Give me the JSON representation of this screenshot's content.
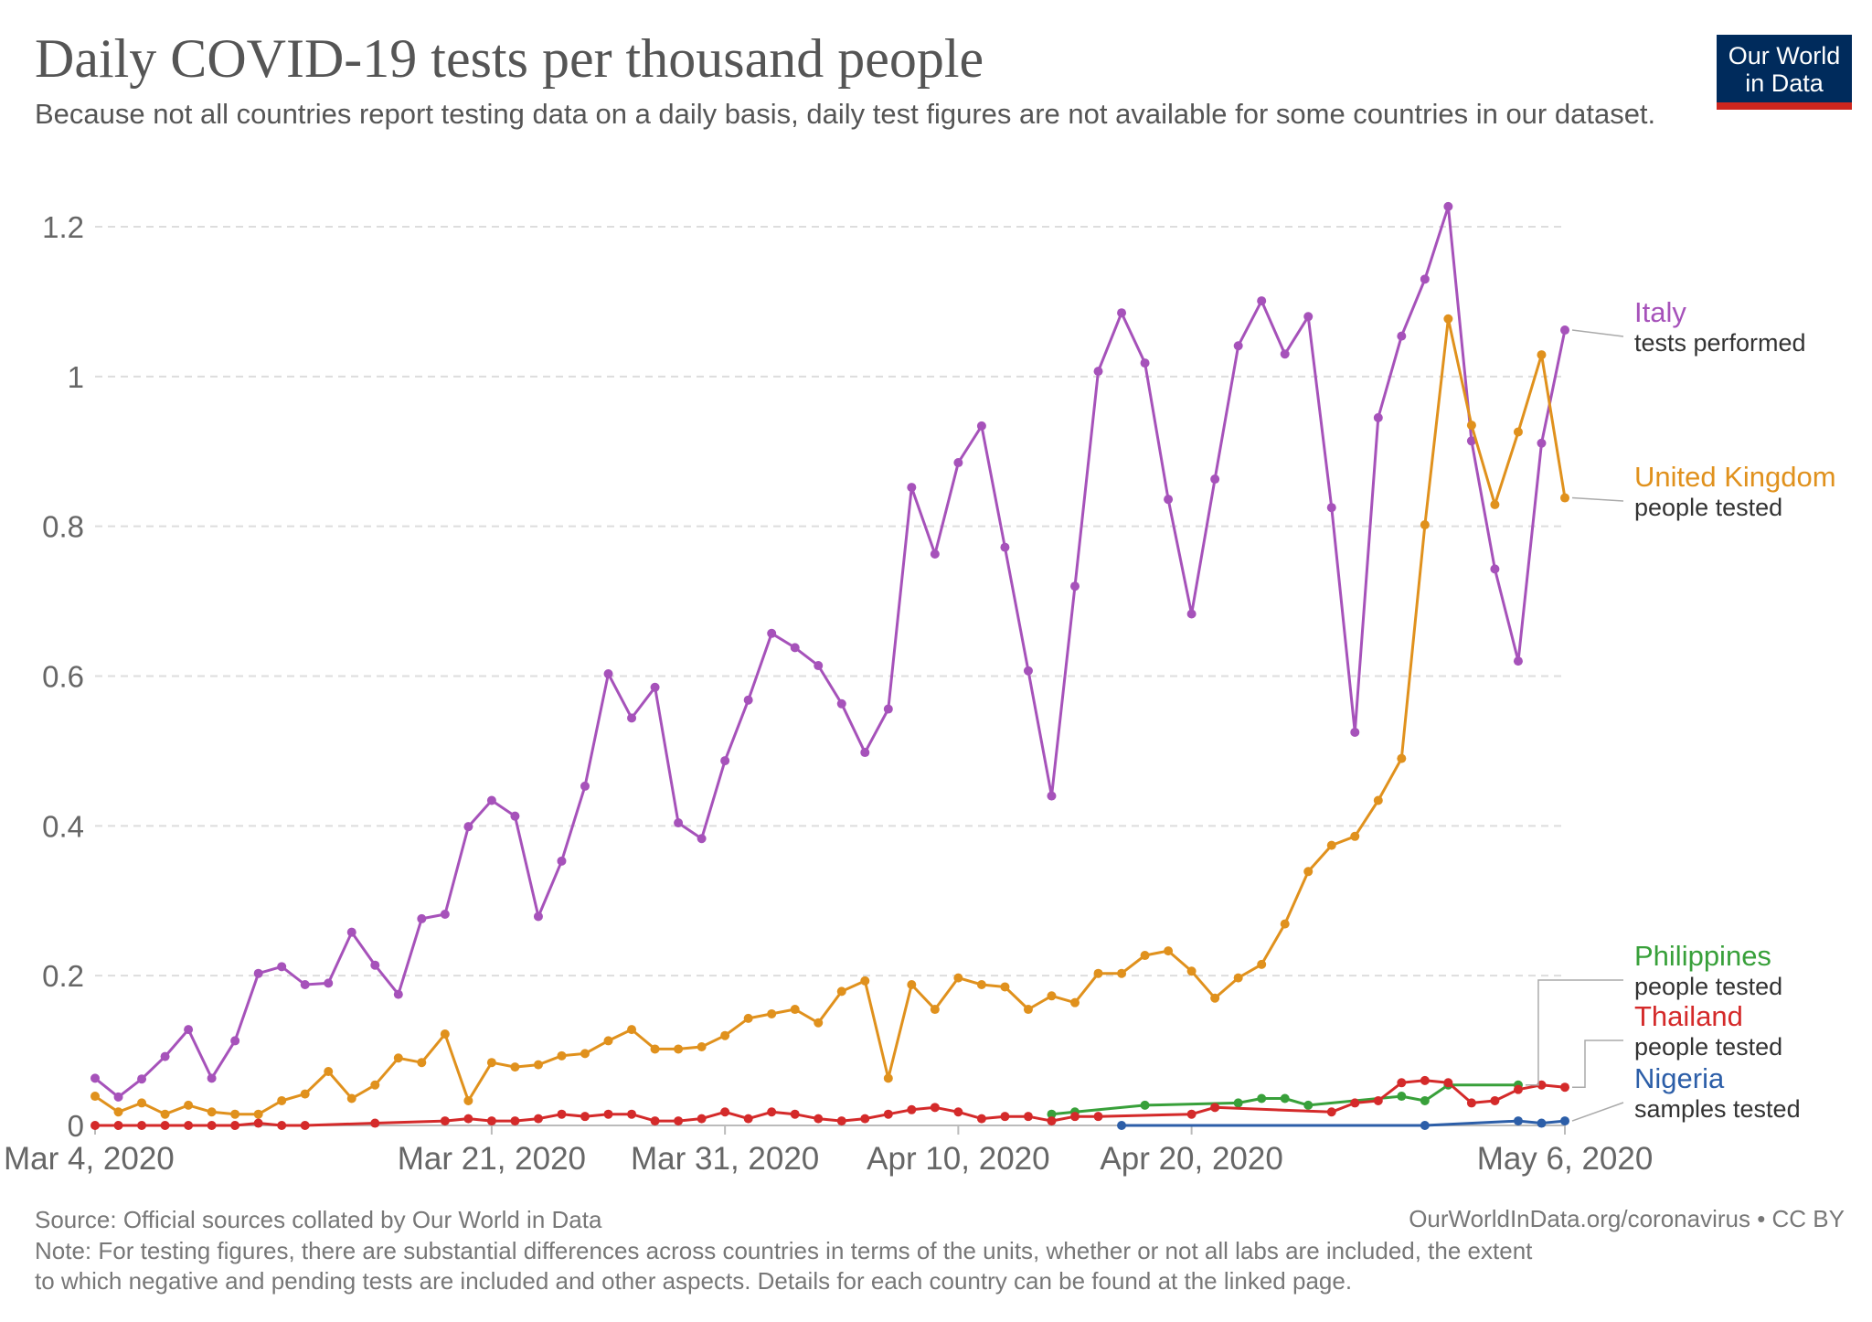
{
  "header": {
    "title": "Daily COVID-19 tests per thousand people",
    "subtitle": "Because not all countries report testing data on a daily basis, daily test figures are not available for some countries in our dataset.",
    "logo_line1": "Our World",
    "logo_line2": "in Data"
  },
  "footer": {
    "source": "Source: Official sources collated by Our World in Data",
    "license": "OurWorldInData.org/coronavirus • CC BY",
    "note_line1": "Note: For testing figures, there are substantial differences across countries in terms of the units, whether or not all labs are included, the extent",
    "note_line2": "to which negative and pending tests are included and other aspects. Details for each country can be found at the linked page."
  },
  "chart_data": {
    "type": "line",
    "x_unit": "date",
    "xlim": [
      "2020-03-04",
      "2020-05-06"
    ],
    "ylim": [
      0,
      1.2
    ],
    "grid": true,
    "y_ticks": [
      {
        "value": 0,
        "label": "0"
      },
      {
        "value": 0.2,
        "label": "0.2"
      },
      {
        "value": 0.4,
        "label": "0.4"
      },
      {
        "value": 0.6,
        "label": "0.6"
      },
      {
        "value": 0.8,
        "label": "0.8"
      },
      {
        "value": 1.0,
        "label": "1"
      },
      {
        "value": 1.2,
        "label": "1.2"
      }
    ],
    "x_ticks": [
      {
        "date": "2020-03-04",
        "label": "Mar 4, 2020"
      },
      {
        "date": "2020-03-21",
        "label": "Mar 21, 2020"
      },
      {
        "date": "2020-03-31",
        "label": "Mar 31, 2020"
      },
      {
        "date": "2020-04-10",
        "label": "Apr 10, 2020"
      },
      {
        "date": "2020-04-20",
        "label": "Apr 20, 2020"
      },
      {
        "date": "2020-05-06",
        "label": "May 6, 2020"
      }
    ],
    "legend_placement": "right",
    "series": [
      {
        "name": "Italy",
        "sublabel": "tests performed",
        "color": "#a652ba",
        "points": [
          [
            "2020-03-04",
            0.063
          ],
          [
            "2020-03-05",
            0.038
          ],
          [
            "2020-03-06",
            0.062
          ],
          [
            "2020-03-07",
            0.092
          ],
          [
            "2020-03-08",
            0.128
          ],
          [
            "2020-03-09",
            0.063
          ],
          [
            "2020-03-10",
            0.113
          ],
          [
            "2020-03-11",
            0.203
          ],
          [
            "2020-03-12",
            0.212
          ],
          [
            "2020-03-13",
            0.188
          ],
          [
            "2020-03-14",
            0.19
          ],
          [
            "2020-03-15",
            0.258
          ],
          [
            "2020-03-16",
            0.214
          ],
          [
            "2020-03-17",
            0.175
          ],
          [
            "2020-03-18",
            0.276
          ],
          [
            "2020-03-19",
            0.282
          ],
          [
            "2020-03-20",
            0.399
          ],
          [
            "2020-03-21",
            0.434
          ],
          [
            "2020-03-22",
            0.413
          ],
          [
            "2020-03-23",
            0.279
          ],
          [
            "2020-03-24",
            0.353
          ],
          [
            "2020-03-25",
            0.453
          ],
          [
            "2020-03-26",
            0.603
          ],
          [
            "2020-03-27",
            0.544
          ],
          [
            "2020-03-28",
            0.585
          ],
          [
            "2020-03-29",
            0.404
          ],
          [
            "2020-03-30",
            0.383
          ],
          [
            "2020-03-31",
            0.487
          ],
          [
            "2020-04-01",
            0.568
          ],
          [
            "2020-04-02",
            0.657
          ],
          [
            "2020-04-03",
            0.638
          ],
          [
            "2020-04-04",
            0.614
          ],
          [
            "2020-04-05",
            0.563
          ],
          [
            "2020-04-06",
            0.498
          ],
          [
            "2020-04-07",
            0.556
          ],
          [
            "2020-04-08",
            0.852
          ],
          [
            "2020-04-09",
            0.763
          ],
          [
            "2020-04-10",
            0.885
          ],
          [
            "2020-04-11",
            0.934
          ],
          [
            "2020-04-12",
            0.772
          ],
          [
            "2020-04-13",
            0.607
          ],
          [
            "2020-04-14",
            0.44
          ],
          [
            "2020-04-15",
            0.72
          ],
          [
            "2020-04-16",
            1.007
          ],
          [
            "2020-04-17",
            1.085
          ],
          [
            "2020-04-18",
            1.018
          ],
          [
            "2020-04-19",
            0.836
          ],
          [
            "2020-04-20",
            0.683
          ],
          [
            "2020-04-21",
            0.863
          ],
          [
            "2020-04-22",
            1.041
          ],
          [
            "2020-04-23",
            1.101
          ],
          [
            "2020-04-24",
            1.03
          ],
          [
            "2020-04-25",
            1.08
          ],
          [
            "2020-04-26",
            0.825
          ],
          [
            "2020-04-27",
            0.525
          ],
          [
            "2020-04-28",
            0.945
          ],
          [
            "2020-04-29",
            1.054
          ],
          [
            "2020-04-30",
            1.13
          ],
          [
            "2020-05-01",
            1.227
          ],
          [
            "2020-05-02",
            0.914
          ],
          [
            "2020-05-03",
            0.743
          ],
          [
            "2020-05-04",
            0.62
          ],
          [
            "2020-05-05",
            0.911
          ],
          [
            "2020-05-06",
            1.062
          ]
        ]
      },
      {
        "name": "United Kingdom",
        "sublabel": "people tested",
        "color": "#e0911d",
        "points": [
          [
            "2020-03-04",
            0.039
          ],
          [
            "2020-03-05",
            0.018
          ],
          [
            "2020-03-06",
            0.03
          ],
          [
            "2020-03-07",
            0.015
          ],
          [
            "2020-03-08",
            0.027
          ],
          [
            "2020-03-09",
            0.018
          ],
          [
            "2020-03-10",
            0.015
          ],
          [
            "2020-03-11",
            0.015
          ],
          [
            "2020-03-12",
            0.033
          ],
          [
            "2020-03-13",
            0.042
          ],
          [
            "2020-03-14",
            0.072
          ],
          [
            "2020-03-15",
            0.036
          ],
          [
            "2020-03-16",
            0.054
          ],
          [
            "2020-03-17",
            0.09
          ],
          [
            "2020-03-18",
            0.084
          ],
          [
            "2020-03-19",
            0.122
          ],
          [
            "2020-03-20",
            0.033
          ],
          [
            "2020-03-21",
            0.084
          ],
          [
            "2020-03-22",
            0.078
          ],
          [
            "2020-03-23",
            0.081
          ],
          [
            "2020-03-24",
            0.093
          ],
          [
            "2020-03-25",
            0.096
          ],
          [
            "2020-03-26",
            0.113
          ],
          [
            "2020-03-27",
            0.128
          ],
          [
            "2020-03-28",
            0.102
          ],
          [
            "2020-03-29",
            0.102
          ],
          [
            "2020-03-30",
            0.105
          ],
          [
            "2020-03-31",
            0.12
          ],
          [
            "2020-04-01",
            0.143
          ],
          [
            "2020-04-02",
            0.149
          ],
          [
            "2020-04-03",
            0.155
          ],
          [
            "2020-04-04",
            0.137
          ],
          [
            "2020-04-05",
            0.179
          ],
          [
            "2020-04-06",
            0.193
          ],
          [
            "2020-04-07",
            0.063
          ],
          [
            "2020-04-08",
            0.188
          ],
          [
            "2020-04-09",
            0.155
          ],
          [
            "2020-04-10",
            0.197
          ],
          [
            "2020-04-11",
            0.188
          ],
          [
            "2020-04-12",
            0.185
          ],
          [
            "2020-04-13",
            0.155
          ],
          [
            "2020-04-14",
            0.173
          ],
          [
            "2020-04-15",
            0.164
          ],
          [
            "2020-04-16",
            0.203
          ],
          [
            "2020-04-17",
            0.203
          ],
          [
            "2020-04-18",
            0.227
          ],
          [
            "2020-04-19",
            0.233
          ],
          [
            "2020-04-20",
            0.206
          ],
          [
            "2020-04-21",
            0.17
          ],
          [
            "2020-04-22",
            0.197
          ],
          [
            "2020-04-23",
            0.215
          ],
          [
            "2020-04-24",
            0.269
          ],
          [
            "2020-04-25",
            0.339
          ],
          [
            "2020-04-26",
            0.374
          ],
          [
            "2020-04-27",
            0.386
          ],
          [
            "2020-04-28",
            0.434
          ],
          [
            "2020-04-29",
            0.49
          ],
          [
            "2020-04-30",
            0.802
          ],
          [
            "2020-05-01",
            1.077
          ],
          [
            "2020-05-02",
            0.935
          ],
          [
            "2020-05-03",
            0.829
          ],
          [
            "2020-05-04",
            0.926
          ],
          [
            "2020-05-05",
            1.029
          ],
          [
            "2020-05-06",
            0.838
          ]
        ]
      },
      {
        "name": "Philippines",
        "sublabel": "people tested",
        "color": "#38a03a",
        "points": [
          [
            "2020-04-14",
            0.015
          ],
          [
            "2020-04-15",
            0.018
          ],
          [
            "2020-04-18",
            0.027
          ],
          [
            "2020-04-22",
            0.03
          ],
          [
            "2020-04-23",
            0.036
          ],
          [
            "2020-04-24",
            0.036
          ],
          [
            "2020-04-25",
            0.027
          ],
          [
            "2020-04-29",
            0.039
          ],
          [
            "2020-04-30",
            0.033
          ],
          [
            "2020-05-01",
            0.054
          ],
          [
            "2020-05-04",
            0.054
          ]
        ]
      },
      {
        "name": "Thailand",
        "sublabel": "people tested",
        "color": "#d42a2a",
        "points": [
          [
            "2020-03-04",
            0.0
          ],
          [
            "2020-03-05",
            0.0
          ],
          [
            "2020-03-06",
            0.0
          ],
          [
            "2020-03-07",
            0.0
          ],
          [
            "2020-03-08",
            0.0
          ],
          [
            "2020-03-09",
            0.0
          ],
          [
            "2020-03-10",
            0.0
          ],
          [
            "2020-03-11",
            0.003
          ],
          [
            "2020-03-12",
            0.0
          ],
          [
            "2020-03-13",
            0.0
          ],
          [
            "2020-03-16",
            0.003
          ],
          [
            "2020-03-19",
            0.006
          ],
          [
            "2020-03-20",
            0.009
          ],
          [
            "2020-03-21",
            0.006
          ],
          [
            "2020-03-22",
            0.006
          ],
          [
            "2020-03-23",
            0.009
          ],
          [
            "2020-03-24",
            0.015
          ],
          [
            "2020-03-25",
            0.012
          ],
          [
            "2020-03-26",
            0.015
          ],
          [
            "2020-03-27",
            0.015
          ],
          [
            "2020-03-28",
            0.006
          ],
          [
            "2020-03-29",
            0.006
          ],
          [
            "2020-03-30",
            0.009
          ],
          [
            "2020-03-31",
            0.018
          ],
          [
            "2020-04-01",
            0.009
          ],
          [
            "2020-04-02",
            0.018
          ],
          [
            "2020-04-03",
            0.015
          ],
          [
            "2020-04-04",
            0.009
          ],
          [
            "2020-04-05",
            0.006
          ],
          [
            "2020-04-06",
            0.009
          ],
          [
            "2020-04-07",
            0.015
          ],
          [
            "2020-04-08",
            0.021
          ],
          [
            "2020-04-09",
            0.024
          ],
          [
            "2020-04-10",
            0.018
          ],
          [
            "2020-04-11",
            0.009
          ],
          [
            "2020-04-12",
            0.012
          ],
          [
            "2020-04-13",
            0.012
          ],
          [
            "2020-04-14",
            0.006
          ],
          [
            "2020-04-15",
            0.012
          ],
          [
            "2020-04-16",
            0.012
          ],
          [
            "2020-04-20",
            0.015
          ],
          [
            "2020-04-21",
            0.024
          ],
          [
            "2020-04-26",
            0.018
          ],
          [
            "2020-04-27",
            0.03
          ],
          [
            "2020-04-28",
            0.033
          ],
          [
            "2020-04-29",
            0.057
          ],
          [
            "2020-04-30",
            0.06
          ],
          [
            "2020-05-01",
            0.057
          ],
          [
            "2020-05-02",
            0.03
          ],
          [
            "2020-05-03",
            0.033
          ],
          [
            "2020-05-04",
            0.048
          ],
          [
            "2020-05-05",
            0.054
          ],
          [
            "2020-05-06",
            0.051
          ]
        ]
      },
      {
        "name": "Nigeria",
        "sublabel": "samples tested",
        "color": "#2c5ea8",
        "points": [
          [
            "2020-04-17",
            0.0
          ],
          [
            "2020-04-30",
            0.0
          ],
          [
            "2020-05-04",
            0.006
          ],
          [
            "2020-05-05",
            0.003
          ],
          [
            "2020-05-06",
            0.006
          ]
        ]
      }
    ]
  }
}
